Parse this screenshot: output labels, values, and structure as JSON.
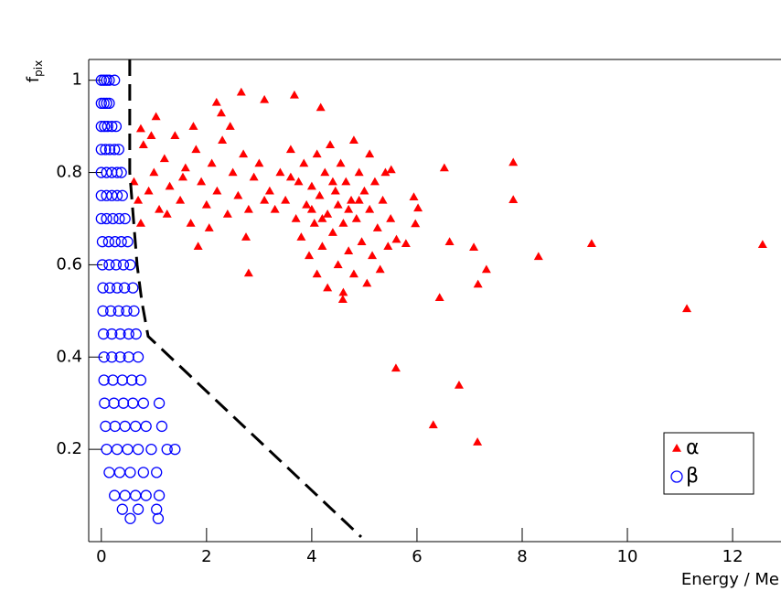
{
  "chart_data": {
    "type": "scatter",
    "x_label": "Energy / Me",
    "y_label": "f",
    "y_label_sub": "pix",
    "xlim": [
      -0.24,
      12.92
    ],
    "ylim": [
      0,
      1.045
    ],
    "xticks": [
      0,
      2,
      4,
      6,
      8,
      10,
      12
    ],
    "yticks": [
      0.2,
      0.4,
      0.6,
      0.8,
      1
    ],
    "legend": "lower right",
    "cut_line": {
      "color": "#000000",
      "x": [
        0.54,
        0.54,
        0.68,
        0.77,
        0.89,
        4.94
      ],
      "y": [
        1.045,
        0.8,
        0.6,
        0.52,
        0.445,
        0.01
      ]
    },
    "series": [
      {
        "name": "α",
        "color": "#ff0000",
        "marker": "triangle",
        "x": [
          12.57,
          11.13,
          9.32,
          8.31,
          7.83,
          7.83,
          7.15,
          6.8,
          6.31,
          5.6,
          6.43,
          7.16,
          7.32,
          7.08,
          6.62,
          6.52,
          5.94,
          5.97,
          6.02,
          5.79,
          5.61,
          5.51,
          2.66,
          3.1,
          3.67,
          2.19,
          2.28,
          4.17,
          1.04,
          0.75,
          1.84,
          2.8,
          4.59,
          0.62,
          0.7,
          0.8,
          0.9,
          1.0,
          1.1,
          1.2,
          1.3,
          1.4,
          1.5,
          1.6,
          1.7,
          1.8,
          1.9,
          2.0,
          2.1,
          2.2,
          2.3,
          2.4,
          2.5,
          2.6,
          2.7,
          2.8,
          2.9,
          3.0,
          1.25,
          0.95,
          1.55,
          2.05,
          2.45,
          2.75,
          3.1,
          0.75,
          1.75,
          3.2,
          3.3,
          3.4,
          3.5,
          3.6,
          3.7,
          3.75,
          3.8,
          3.85,
          3.9,
          3.95,
          4.0,
          4.05,
          4.1,
          4.1,
          4.15,
          4.2,
          4.25,
          4.3,
          4.3,
          4.35,
          4.4,
          4.45,
          4.5,
          4.5,
          4.55,
          4.6,
          4.6,
          4.65,
          4.7,
          4.75,
          4.8,
          4.8,
          4.85,
          4.9,
          4.95,
          5.0,
          5.05,
          5.1,
          5.1,
          5.15,
          5.2,
          5.25,
          5.3,
          5.35,
          5.4,
          5.45,
          5.5,
          4.0,
          4.4,
          4.7,
          3.6,
          4.2,
          4.9
        ],
        "values": [
          0.644,
          0.505,
          0.646,
          0.618,
          0.822,
          0.741,
          0.216,
          0.339,
          0.253,
          0.376,
          0.529,
          0.558,
          0.59,
          0.638,
          0.65,
          0.81,
          0.747,
          0.689,
          0.723,
          0.646,
          0.655,
          0.806,
          0.974,
          0.958,
          0.968,
          0.952,
          0.929,
          0.941,
          0.921,
          0.895,
          0.64,
          0.582,
          0.525,
          0.78,
          0.74,
          0.86,
          0.76,
          0.8,
          0.72,
          0.83,
          0.77,
          0.88,
          0.74,
          0.81,
          0.69,
          0.85,
          0.78,
          0.73,
          0.82,
          0.76,
          0.87,
          0.71,
          0.8,
          0.75,
          0.84,
          0.72,
          0.79,
          0.82,
          0.71,
          0.88,
          0.79,
          0.68,
          0.9,
          0.66,
          0.74,
          0.69,
          0.9,
          0.76,
          0.72,
          0.8,
          0.74,
          0.85,
          0.7,
          0.78,
          0.66,
          0.82,
          0.73,
          0.62,
          0.77,
          0.69,
          0.84,
          0.58,
          0.75,
          0.64,
          0.8,
          0.71,
          0.55,
          0.86,
          0.67,
          0.76,
          0.6,
          0.73,
          0.82,
          0.69,
          0.54,
          0.78,
          0.63,
          0.74,
          0.87,
          0.58,
          0.7,
          0.8,
          0.65,
          0.76,
          0.56,
          0.72,
          0.84,
          0.62,
          0.78,
          0.68,
          0.59,
          0.74,
          0.8,
          0.64,
          0.7,
          0.72,
          0.78,
          0.72,
          0.79,
          0.7,
          0.74
        ]
      },
      {
        "name": "β",
        "color": "#0000ff",
        "marker": "circle",
        "x": [
          0.0,
          0.05,
          0.1,
          0.15,
          0.25,
          0.0,
          0.05,
          0.1,
          0.15,
          0,
          0.06,
          0.12,
          0.2,
          0.28,
          0,
          0.08,
          0.16,
          0.25,
          0.33,
          0,
          0.1,
          0.2,
          0.3,
          0.38,
          0,
          0.1,
          0.2,
          0.3,
          0.4,
          0,
          0.1,
          0.22,
          0.34,
          0.45,
          0.02,
          0.14,
          0.26,
          0.38,
          0.5,
          0.02,
          0.15,
          0.28,
          0.42,
          0.55,
          0.03,
          0.16,
          0.3,
          0.44,
          0.6,
          0.03,
          0.18,
          0.33,
          0.48,
          0.62,
          0.04,
          0.2,
          0.36,
          0.52,
          0.66,
          0.05,
          0.2,
          0.36,
          0.52,
          0.7,
          0.05,
          0.22,
          0.4,
          0.58,
          0.75,
          0.06,
          0.24,
          0.42,
          0.6,
          0.8,
          1.1,
          0.08,
          0.26,
          0.45,
          0.65,
          0.85,
          1.15,
          0.1,
          0.3,
          0.5,
          0.7,
          0.95,
          1.25,
          1.4,
          0.15,
          0.35,
          0.55,
          0.8,
          1.05,
          0.25,
          0.45,
          0.65,
          0.85,
          1.1,
          0.4,
          0.7,
          1.05,
          0.55,
          1.08
        ],
        "values": [
          1.0,
          1.0,
          1.0,
          1.0,
          1.0,
          0.95,
          0.95,
          0.95,
          0.95,
          0.9,
          0.9,
          0.9,
          0.9,
          0.9,
          0.85,
          0.85,
          0.85,
          0.85,
          0.85,
          0.8,
          0.8,
          0.8,
          0.8,
          0.8,
          0.75,
          0.75,
          0.75,
          0.75,
          0.75,
          0.7,
          0.7,
          0.7,
          0.7,
          0.7,
          0.65,
          0.65,
          0.65,
          0.65,
          0.65,
          0.6,
          0.6,
          0.6,
          0.6,
          0.6,
          0.55,
          0.55,
          0.55,
          0.55,
          0.55,
          0.5,
          0.5,
          0.5,
          0.5,
          0.5,
          0.45,
          0.45,
          0.45,
          0.45,
          0.45,
          0.4,
          0.4,
          0.4,
          0.4,
          0.4,
          0.35,
          0.35,
          0.35,
          0.35,
          0.35,
          0.3,
          0.3,
          0.3,
          0.3,
          0.3,
          0.3,
          0.25,
          0.25,
          0.25,
          0.25,
          0.25,
          0.25,
          0.2,
          0.2,
          0.2,
          0.2,
          0.2,
          0.2,
          0.2,
          0.15,
          0.15,
          0.15,
          0.15,
          0.15,
          0.1,
          0.1,
          0.1,
          0.1,
          0.1,
          0.07,
          0.07,
          0.07,
          0.05,
          0.05
        ]
      }
    ]
  }
}
